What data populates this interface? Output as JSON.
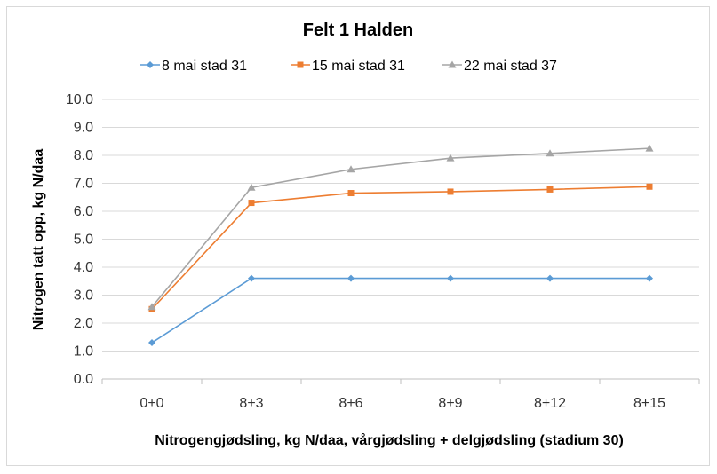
{
  "chart_data": {
    "type": "line",
    "title": "Felt 1 Halden",
    "xlabel": "Nitrogengjødsling, kg N/daa, vårgjødsling + delgjødsling (stadium 30)",
    "ylabel": "Nitrogen tatt opp, kg N/daa",
    "categories": [
      "0+0",
      "8+3",
      "8+6",
      "8+9",
      "8+12",
      "8+15"
    ],
    "ylim": [
      0,
      10
    ],
    "yticks": [
      "0.0",
      "1.0",
      "2.0",
      "3.0",
      "4.0",
      "5.0",
      "6.0",
      "7.0",
      "8.0",
      "9.0",
      "10.0"
    ],
    "grid": true,
    "legend": "top",
    "series": [
      {
        "name": "8 mai stad 31",
        "color": "#5b9bd5",
        "marker": "diamond",
        "values": [
          1.3,
          3.6,
          3.6,
          3.6,
          3.6,
          3.6
        ]
      },
      {
        "name": "15 mai stad 31",
        "color": "#ed7d31",
        "marker": "square",
        "values": [
          2.5,
          6.3,
          6.65,
          6.7,
          6.78,
          6.88
        ]
      },
      {
        "name": "22 mai stad 37",
        "color": "#a5a5a5",
        "marker": "triangle",
        "values": [
          2.58,
          6.85,
          7.5,
          7.9,
          8.07,
          8.25
        ]
      }
    ]
  }
}
